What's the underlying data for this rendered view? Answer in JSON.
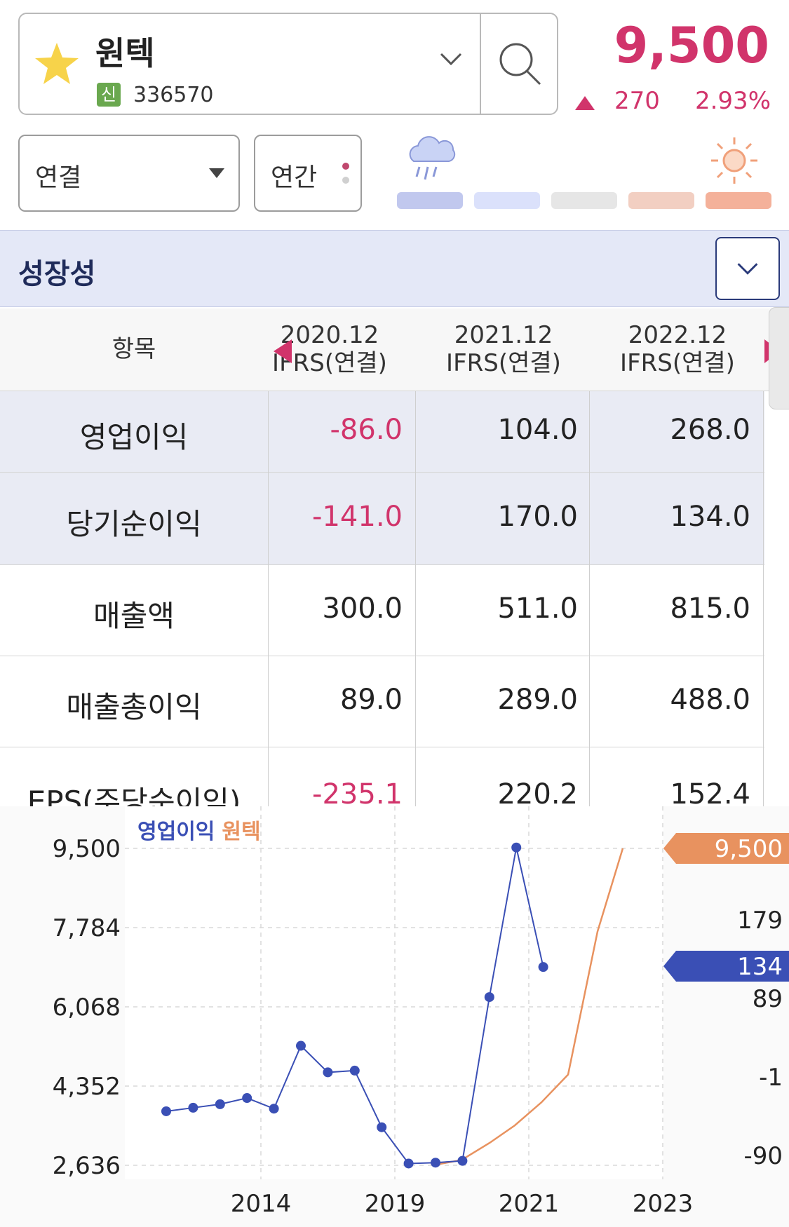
{
  "header": {
    "stock_name": "원텍",
    "badge": "신",
    "stock_code": "336570",
    "price": "9,500",
    "change": "270",
    "change_pct": "2.93%",
    "accent_color": "#d1346b"
  },
  "controls": {
    "consolidation_select": "연결",
    "period_select": "연간",
    "weather_scale_colors": [
      "#c1c8ee",
      "#dbe1fb",
      "#e6e6e6",
      "#f2cfc2",
      "#f4b19a"
    ]
  },
  "section": {
    "title": "성장성"
  },
  "table": {
    "header_label": "항목",
    "columns": [
      {
        "period": "2020.12",
        "basis": "IFRS(연결)"
      },
      {
        "period": "2021.12",
        "basis": "IFRS(연결)"
      },
      {
        "period": "2022.12",
        "basis": "IFRS(연결)"
      }
    ],
    "rows": [
      {
        "label": "영업이익",
        "values": [
          "-86.0",
          "104.0",
          "268.0"
        ],
        "highlight": true
      },
      {
        "label": "당기순이익",
        "values": [
          "-141.0",
          "170.0",
          "134.0"
        ],
        "highlight": true
      },
      {
        "label": "매출액",
        "values": [
          "300.0",
          "511.0",
          "815.0"
        ],
        "highlight": false
      },
      {
        "label": "매출총이익",
        "values": [
          "89.0",
          "289.0",
          "488.0"
        ],
        "highlight": false
      },
      {
        "label": "EPS(주당순이익)",
        "values": [
          "-235.1",
          "220.2",
          "152.4"
        ],
        "highlight": false
      }
    ]
  },
  "chart_data": {
    "type": "line",
    "legend": [
      {
        "name": "영업이익",
        "color": "#3a4fb5"
      },
      {
        "name": "원텍",
        "color": "#e8925f"
      }
    ],
    "left_axis_ticks": [
      "9,500",
      "7,784",
      "6,068",
      "4,352",
      "2,636"
    ],
    "left_ylim": [
      2636,
      9500
    ],
    "right_axis_ticks": [
      "179",
      "89",
      "-1",
      "-90"
    ],
    "right_ylim": [
      -90,
      268
    ],
    "x_ticks": [
      "2014",
      "2019",
      "2021",
      "2023"
    ],
    "price_tag": "9,500",
    "series_tag": "134",
    "series": [
      {
        "name": "영업이익",
        "color": "#3a4fb5",
        "axis": "right",
        "values": [
          -29,
          -25,
          -21,
          -14,
          -26,
          45,
          15,
          17,
          -47,
          -88,
          -87,
          -85,
          100,
          269,
          134
        ]
      },
      {
        "name": "원텍",
        "color": "#e8925f",
        "axis": "left",
        "values": [
          2640,
          2750,
          3120,
          3500,
          4000,
          4600,
          7700,
          9500
        ]
      }
    ]
  }
}
